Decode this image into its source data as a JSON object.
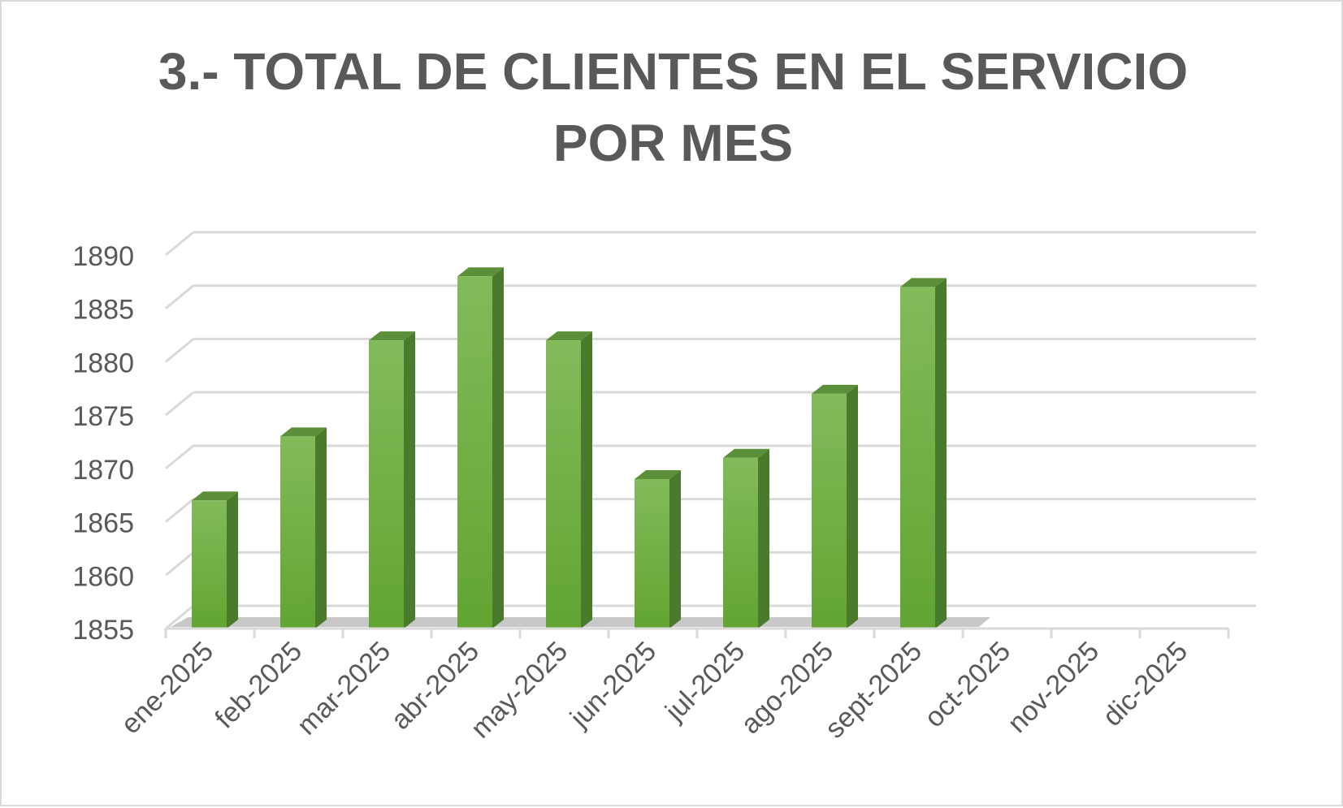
{
  "chart_data": {
    "type": "bar",
    "title_lines": [
      "3.- TOTAL DE CLIENTES EN EL SERVICIO",
      "POR MES"
    ],
    "categories": [
      "ene-2025",
      "feb-2025",
      "mar-2025",
      "abr-2025",
      "may-2025",
      "jun-2025",
      "jul-2025",
      "ago-2025",
      "sept-2025",
      "oct-2025",
      "nov-2025",
      "dic-2025"
    ],
    "values": [
      1867,
      1873,
      1882,
      1888,
      1882,
      1869,
      1871,
      1877,
      1887,
      null,
      null,
      null
    ],
    "ylim": [
      1855,
      1890
    ],
    "yticks": [
      1855,
      1860,
      1865,
      1870,
      1875,
      1880,
      1885,
      1890
    ],
    "xlabel": "",
    "ylabel": "",
    "grid": true,
    "legend": "none",
    "colors": {
      "bar_front": "#6aac3c",
      "bar_front_light": "#82bb5a",
      "bar_side": "#4a7a2c",
      "bar_top": "#5b8f3a",
      "gridline": "#d9d9d9",
      "text": "#595959"
    }
  }
}
